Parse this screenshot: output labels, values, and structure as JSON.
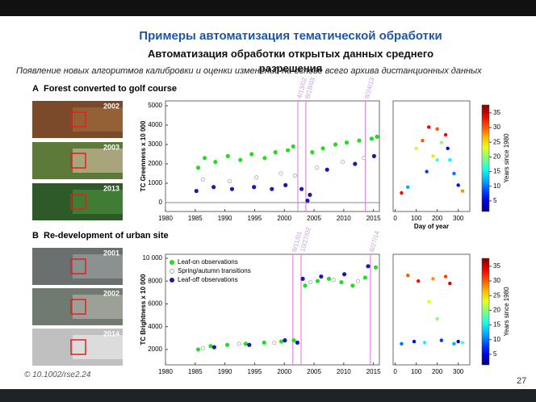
{
  "header": {
    "title": "Примеры автоматизация тематической обработки",
    "subtitle": "Автоматизация обработки открытых данных среднего разрешения",
    "note": "Появление новых алгоритмов калибровки и оценки изменений на основе всего архива дистанционных данных"
  },
  "footer": {
    "doi": "© 10.1002/rse2.24",
    "page": "27"
  },
  "panels": [
    {
      "label": "A",
      "title": "Forest converted to golf course",
      "photo_years": [
        "2002",
        "2003",
        "2013"
      ],
      "chart": {
        "type": "scatter",
        "ylabel": "TC Greenness x 10 000",
        "xlim": [
          1980,
          2016
        ],
        "xticks": [
          1980,
          1985,
          1990,
          1995,
          2000,
          2005,
          2010,
          2015
        ],
        "ylim": [
          -460,
          5250
        ],
        "yticks": [
          0,
          1000,
          2000,
          3000,
          4000,
          5000
        ],
        "zero_line": true,
        "events": [
          {
            "value": 2002.28,
            "label": "4/13/02"
          },
          {
            "value": 2003.63,
            "label": "8/18/03"
          },
          {
            "value": 2013.65,
            "label": "8/24/13"
          }
        ],
        "series": [
          {
            "color": "#22dd22",
            "marker": "filled",
            "x": [
              1985.5,
              1986.6,
              1988.4,
              1990.5,
              1992.6,
              1994.5,
              1996.7,
              1998.5,
              2000.6,
              2001.5,
              2004.7,
              2006.5,
              2008.6,
              2010.5,
              2012.6,
              2014.7,
              2015.6
            ],
            "values": [
              1800,
              2300,
              2100,
              2400,
              2200,
              2500,
              2300,
              2600,
              2700,
              2900,
              2600,
              2800,
              3000,
              3100,
              3200,
              3300,
              3400
            ]
          },
          {
            "color": "#aaaaaa",
            "marker": "open",
            "x": [
              1986.3,
              1990.8,
              1995.3,
              1999.4,
              2001.8,
              2005.5,
              2009.8,
              2013.4
            ],
            "values": [
              1200,
              1100,
              1300,
              1500,
              1400,
              1800,
              2100,
              2300
            ]
          },
          {
            "color": "#1a1aa8",
            "marker": "filled",
            "x": [
              1985.2,
              1988.1,
              1991.2,
              1994.9,
              1997.9,
              2000.2,
              2002.9,
              2003.9,
              2004.3,
              2007.2,
              2011.9,
              2015.1
            ],
            "values": [
              600,
              800,
              700,
              800,
              700,
              900,
              700,
              100,
              400,
              1700,
              2000,
              2400
            ]
          }
        ]
      },
      "doy_chart": {
        "xlabel": "Day of year",
        "xlim": [
          -10,
          355
        ],
        "xticks": [
          0,
          100,
          200,
          300
        ],
        "ylim": [
          -460,
          5250
        ],
        "x": [
          30,
          60,
          100,
          130,
          160,
          180,
          200,
          220,
          240,
          260,
          280,
          300,
          320,
          150,
          250,
          200
        ],
        "values": [
          500,
          800,
          2800,
          3200,
          3900,
          2400,
          3800,
          3100,
          3500,
          2200,
          1500,
          900,
          600,
          1600,
          2800,
          2200
        ],
        "years": [
          33,
          12,
          22,
          30,
          34,
          25,
          30,
          20,
          33,
          15,
          10,
          5,
          28,
          8,
          6,
          18
        ]
      },
      "colorbar": {
        "label": "Years since 1980",
        "lim": [
          1.4,
          37.7
        ],
        "ticks": [
          5,
          10,
          15,
          20,
          25,
          30,
          35
        ]
      }
    },
    {
      "label": "B",
      "title": "Re-development of urban site",
      "photo_years": [
        "2001",
        "2002",
        "2014"
      ],
      "chart": {
        "type": "scatter",
        "ylabel": "TC Brightness x 10 000",
        "xlim": [
          1980,
          2016
        ],
        "xticks": [
          1980,
          1985,
          1990,
          1995,
          2000,
          2005,
          2010,
          2015
        ],
        "ylim": [
          650,
          10350
        ],
        "yticks": [
          2000,
          4000,
          6000,
          8000,
          {
            "value": 10000,
            "label": "10 000"
          }
        ],
        "zero_line": false,
        "events": [
          {
            "value": 2001.44,
            "label": "6/11/01"
          },
          {
            "value": 2002.82,
            "label": "10/27/02"
          },
          {
            "value": 2014.49,
            "label": "6/27/14"
          }
        ],
        "series": [
          {
            "name": "Leaf-on observations",
            "color": "#22dd22",
            "marker": "filled",
            "x": [
              1985.5,
              1987.6,
              1990.4,
              1993.5,
              1996.6,
              1999.5,
              2001.6,
              2003.5,
              2005.6,
              2007.5,
              2009.6,
              2011.5,
              2013.6,
              2015.4
            ],
            "values": [
              2000,
              2300,
              2400,
              2500,
              2600,
              2700,
              2800,
              7600,
              8000,
              8200,
              7900,
              7600,
              8300,
              9200
            ]
          },
          {
            "name": "Spring/autumn transitions",
            "color": "#aaaaaa",
            "marker": "open",
            "x": [
              1986.3,
              1992.4,
              1998.3,
              2004.4,
              2008.3,
              2012.4
            ],
            "values": [
              2100,
              2500,
              2600,
              7900,
              8100,
              8000
            ]
          },
          {
            "name": "Leaf-off observations",
            "color": "#1a1aa8",
            "marker": "filled",
            "x": [
              1988.2,
              1994.1,
              2000.1,
              2002.2,
              2003.1,
              2006.2,
              2010.1,
              2014.1
            ],
            "values": [
              2200,
              2400,
              2800,
              2600,
              8200,
              8400,
              8600,
              9300
            ]
          }
        ]
      },
      "doy_chart": {
        "xlim": [
          -10,
          355
        ],
        "xticks": [
          0,
          100,
          200,
          300
        ],
        "ylim": [
          650,
          10350
        ],
        "x": [
          30,
          60,
          90,
          110,
          140,
          160,
          180,
          200,
          220,
          240,
          260,
          280,
          300,
          320
        ],
        "values": [
          2500,
          8500,
          2700,
          8000,
          2600,
          6200,
          8200,
          4700,
          2800,
          8400,
          7800,
          2500,
          2700,
          2600
        ],
        "years": [
          10,
          30,
          6,
          33,
          15,
          23,
          28,
          20,
          8,
          31,
          34,
          12,
          5,
          18
        ]
      },
      "colorbar": {
        "label": "Years since 1980",
        "lim": [
          1.4,
          37.7
        ],
        "ticks": [
          5,
          10,
          15,
          20,
          25,
          30,
          35
        ]
      }
    }
  ]
}
